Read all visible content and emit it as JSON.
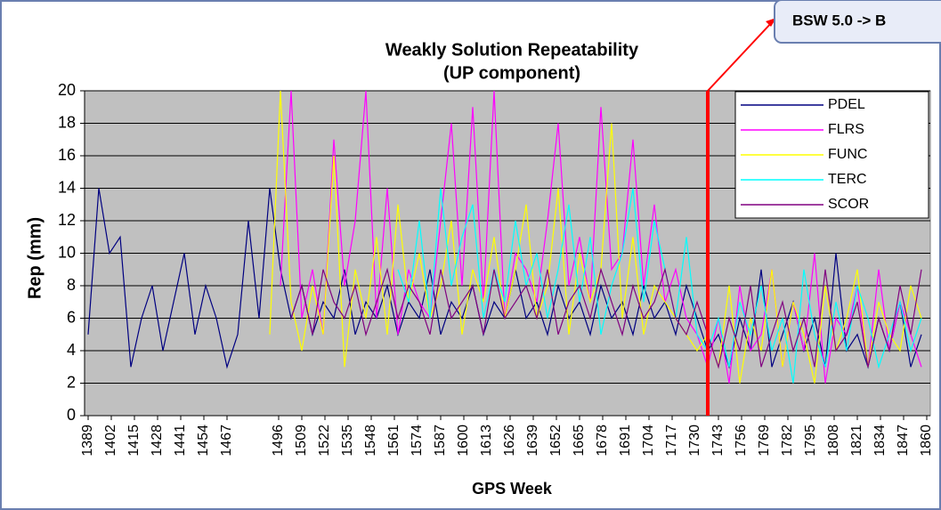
{
  "chart_data": {
    "type": "line",
    "title": "Weakly Solution Repeatability",
    "subtitle": "(UP component)",
    "x_label": "GPS Week",
    "y_label": "Rep (mm)",
    "annotation": {
      "text": "BSW 5.0 -> B",
      "x": 1737,
      "color": "#ff0000"
    },
    "x": [
      1389,
      1395,
      1401,
      1407,
      1413,
      1419,
      1425,
      1431,
      1437,
      1443,
      1449,
      1455,
      1461,
      1467,
      1473,
      1479,
      1485,
      1491,
      1497,
      1503,
      1509,
      1515,
      1521,
      1527,
      1533,
      1539,
      1545,
      1551,
      1557,
      1563,
      1569,
      1575,
      1581,
      1587,
      1593,
      1599,
      1605,
      1611,
      1617,
      1623,
      1629,
      1635,
      1641,
      1647,
      1653,
      1659,
      1665,
      1671,
      1677,
      1683,
      1689,
      1695,
      1701,
      1707,
      1713,
      1719,
      1725,
      1731,
      1737,
      1743,
      1749,
      1755,
      1761,
      1767,
      1773,
      1779,
      1785,
      1791,
      1797,
      1803,
      1809,
      1815,
      1821,
      1827,
      1833,
      1839,
      1845,
      1851,
      1857
    ],
    "series": [
      {
        "name": "PDEL",
        "color": "#000080",
        "values": [
          5,
          14,
          10,
          11,
          3,
          6,
          8,
          4,
          7,
          10,
          5,
          8,
          6,
          3,
          5,
          12,
          6,
          14,
          9,
          6,
          8,
          5,
          7,
          6,
          9,
          5,
          7,
          6,
          8,
          5,
          7,
          6,
          9,
          5,
          7,
          6,
          8,
          5,
          7,
          6,
          9,
          6,
          7,
          5,
          8,
          6,
          7,
          5,
          8,
          6,
          7,
          5,
          8,
          6,
          7,
          5,
          8,
          6,
          4,
          5,
          3,
          6,
          4,
          9,
          3,
          5,
          7,
          4,
          6,
          3,
          10,
          4,
          5,
          3,
          6,
          4,
          7,
          3,
          5
        ]
      },
      {
        "name": "FLRS",
        "color": "#ff00ff",
        "values": [
          null,
          null,
          null,
          null,
          null,
          null,
          null,
          null,
          null,
          null,
          null,
          null,
          null,
          null,
          null,
          null,
          null,
          null,
          8,
          20,
          6,
          9,
          5,
          17,
          8,
          12,
          20,
          6,
          14,
          5,
          9,
          7,
          6,
          12,
          18,
          8,
          19,
          7,
          20,
          6,
          10,
          9,
          7,
          12,
          18,
          8,
          11,
          7,
          19,
          9,
          10,
          17,
          8,
          13,
          7,
          9,
          6,
          5,
          3,
          6,
          2,
          8,
          4,
          5,
          9,
          3,
          7,
          4,
          10,
          2,
          6,
          5,
          8,
          3,
          9,
          4,
          7,
          5,
          3
        ]
      },
      {
        "name": "FUNC",
        "color": "#ffff00",
        "values": [
          null,
          null,
          null,
          null,
          null,
          null,
          null,
          null,
          null,
          null,
          null,
          null,
          null,
          null,
          null,
          null,
          null,
          5,
          20,
          7,
          4,
          8,
          5,
          16,
          3,
          9,
          6,
          11,
          5,
          13,
          7,
          10,
          6,
          8,
          12,
          5,
          9,
          7,
          11,
          6,
          9,
          13,
          6,
          8,
          14,
          5,
          10,
          7,
          9,
          18,
          6,
          11,
          5,
          8,
          7,
          6,
          5,
          4,
          5,
          3,
          8,
          2,
          6,
          4,
          9,
          3,
          7,
          5,
          2,
          8,
          4,
          6,
          9,
          3,
          7,
          5,
          4,
          8,
          6
        ]
      },
      {
        "name": "TERC",
        "color": "#00ffff",
        "values": [
          null,
          null,
          null,
          null,
          null,
          null,
          null,
          null,
          null,
          null,
          null,
          null,
          null,
          null,
          null,
          null,
          null,
          null,
          null,
          null,
          null,
          null,
          null,
          null,
          null,
          null,
          null,
          null,
          null,
          9,
          7,
          12,
          6,
          14,
          8,
          11,
          13,
          6,
          9,
          7,
          12,
          8,
          10,
          6,
          9,
          13,
          7,
          11,
          5,
          8,
          10,
          14,
          7,
          12,
          9,
          6,
          11,
          5,
          4,
          6,
          3,
          7,
          5,
          8,
          4,
          6,
          2,
          9,
          5,
          3,
          7,
          4,
          8,
          6,
          3,
          5,
          7,
          4,
          6
        ]
      },
      {
        "name": "SCOR",
        "color": "#800080",
        "values": [
          null,
          null,
          null,
          null,
          null,
          null,
          null,
          null,
          null,
          null,
          null,
          null,
          null,
          null,
          null,
          null,
          null,
          null,
          null,
          6,
          8,
          5,
          9,
          7,
          6,
          8,
          5,
          7,
          9,
          6,
          8,
          7,
          5,
          9,
          6,
          7,
          8,
          5,
          9,
          6,
          7,
          8,
          6,
          9,
          5,
          7,
          8,
          6,
          9,
          7,
          5,
          8,
          6,
          7,
          9,
          6,
          5,
          7,
          5,
          3,
          6,
          4,
          8,
          3,
          5,
          7,
          4,
          6,
          3,
          9,
          4,
          5,
          7,
          3,
          6,
          4,
          8,
          5,
          9
        ]
      }
    ],
    "xlim": [
      1387,
      1862
    ],
    "ylim": [
      0,
      20
    ],
    "xticks": [
      1389,
      1402,
      1415,
      1428,
      1441,
      1454,
      1467,
      1496,
      1509,
      1522,
      1535,
      1548,
      1561,
      1574,
      1587,
      1600,
      1613,
      1626,
      1639,
      1652,
      1665,
      1678,
      1691,
      1704,
      1717,
      1730,
      1743,
      1756,
      1769,
      1782,
      1795,
      1808,
      1821,
      1834,
      1847,
      1860
    ],
    "yticks": [
      0,
      2,
      4,
      6,
      8,
      10,
      12,
      14,
      16,
      18,
      20
    ],
    "grid": true,
    "plot_background": "#c0c0c0"
  }
}
